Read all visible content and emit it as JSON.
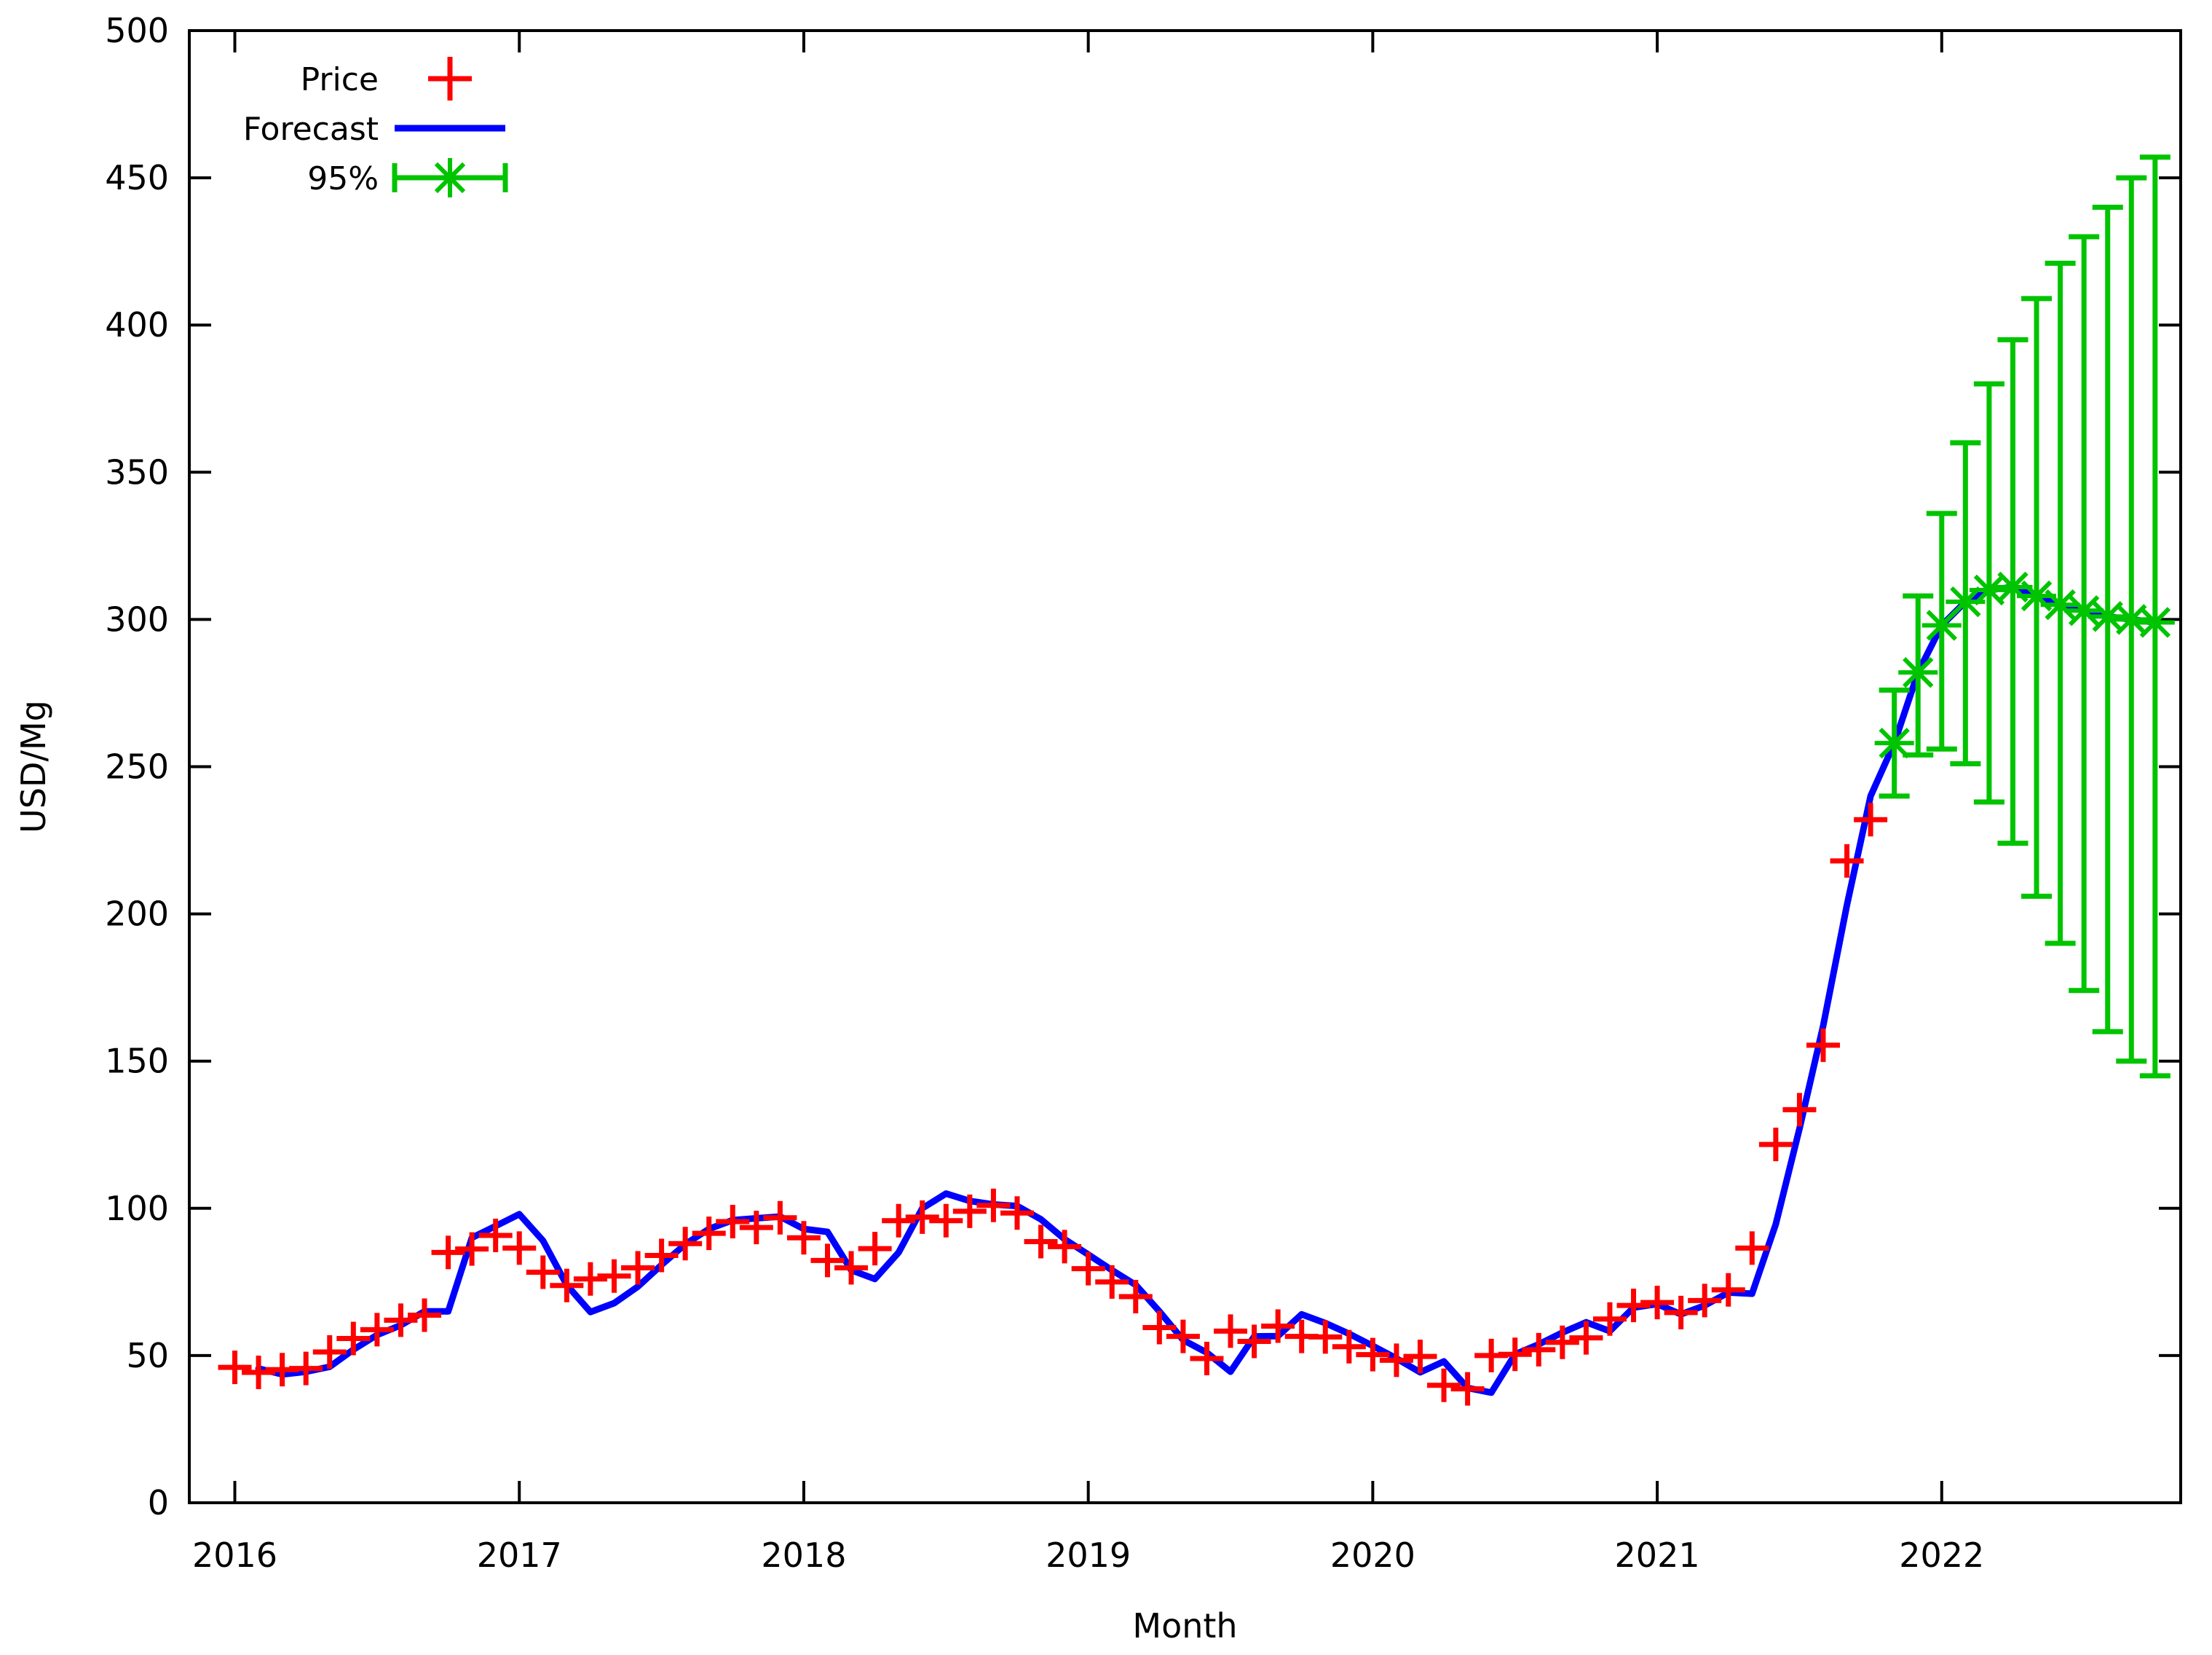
{
  "chart_data": {
    "type": "line",
    "title": "",
    "xlabel": "Month",
    "ylabel": "USD/Mg",
    "ylim": [
      0,
      500
    ],
    "y_tick_step": 50,
    "y_tick_labels": [
      "0",
      "50",
      "100",
      "150",
      "200",
      "250",
      "300",
      "350",
      "400",
      "450",
      "500"
    ],
    "x_tick_labels": [
      "2016",
      "2017",
      "2018",
      "2019",
      "2020",
      "2021",
      "2022"
    ],
    "x_tick_years": [
      2016,
      2017,
      2018,
      2019,
      2020,
      2021,
      2022
    ],
    "xlim": [
      2015.84,
      2022.84
    ],
    "grid": false,
    "legend_position": "top-left-inside",
    "colors": {
      "price": "#ff0000",
      "forecast": "#0000ff",
      "ci": "#00c400",
      "axis": "#000000",
      "background": "#ffffff"
    },
    "legend": [
      {
        "label": "Price",
        "marker": "plus",
        "color": "#ff0000"
      },
      {
        "label": "Forecast",
        "marker": "line",
        "color": "#0000ff"
      },
      {
        "label": "95%",
        "marker": "errorbar",
        "color": "#00c400"
      }
    ],
    "series": [
      {
        "name": "Price",
        "type": "points",
        "start_month": "2016-01",
        "values": [
          46,
          44.3,
          45.2,
          45.6,
          51.2,
          55.8,
          58.8,
          62,
          63.7,
          85,
          86.2,
          90.8,
          86.5,
          78.3,
          73.8,
          76,
          77,
          79.8,
          84,
          88,
          91.5,
          95.5,
          93.5,
          96.8,
          90,
          82.3,
          79.8,
          86.3,
          95.8,
          97,
          95.8,
          99,
          101,
          98.4,
          88.7,
          87,
          79.5,
          75,
          70,
          59.5,
          56.5,
          49,
          58.3,
          54.8,
          60,
          56.5,
          56.3,
          53,
          50.3,
          48.4,
          49.7,
          39.9,
          38.7,
          50,
          50.4,
          52,
          54.5,
          56,
          62.4,
          67,
          68,
          64.6,
          68.7,
          72.3,
          86.5,
          121.7,
          133.5,
          155.4,
          218,
          232
        ]
      },
      {
        "name": "Forecast",
        "type": "line",
        "start_month": "2016-02",
        "values": [
          45.6,
          43.6,
          44.5,
          46.2,
          52,
          57,
          60.3,
          65,
          65,
          90,
          94,
          98,
          89,
          74,
          64.8,
          67.8,
          73.4,
          80.8,
          87.8,
          93,
          96,
          96.6,
          97.2,
          93,
          92,
          79,
          76,
          85,
          100,
          105,
          102.5,
          101.3,
          100.8,
          96.3,
          89.5,
          84.3,
          79,
          74,
          65,
          55.3,
          51,
          44.5,
          56.5,
          56.6,
          64,
          61,
          57.4,
          53.3,
          49,
          44.3,
          48,
          39,
          37.4,
          50.4,
          53.8,
          57.8,
          61.3,
          58.3,
          66.3,
          67.5,
          64,
          67,
          71.4,
          71,
          94.6,
          127,
          162,
          203,
          240,
          258,
          282,
          298,
          306,
          310,
          311,
          308,
          305,
          303,
          301,
          300,
          299
        ]
      },
      {
        "name": "95%",
        "type": "errorbars",
        "start_month": "2021-11",
        "points": [
          {
            "center": 258,
            "lo": 240,
            "hi": 276
          },
          {
            "center": 282,
            "lo": 254,
            "hi": 308
          },
          {
            "center": 298,
            "lo": 256,
            "hi": 336
          },
          {
            "center": 306,
            "lo": 251,
            "hi": 360
          },
          {
            "center": 310,
            "lo": 238,
            "hi": 380
          },
          {
            "center": 311,
            "lo": 224,
            "hi": 395
          },
          {
            "center": 308,
            "lo": 206,
            "hi": 409
          },
          {
            "center": 305,
            "lo": 190,
            "hi": 421
          },
          {
            "center": 303,
            "lo": 174,
            "hi": 430
          },
          {
            "center": 301,
            "lo": 160,
            "hi": 440
          },
          {
            "center": 300,
            "lo": 150,
            "hi": 450
          },
          {
            "center": 299,
            "lo": 145,
            "hi": 457
          }
        ]
      }
    ]
  }
}
